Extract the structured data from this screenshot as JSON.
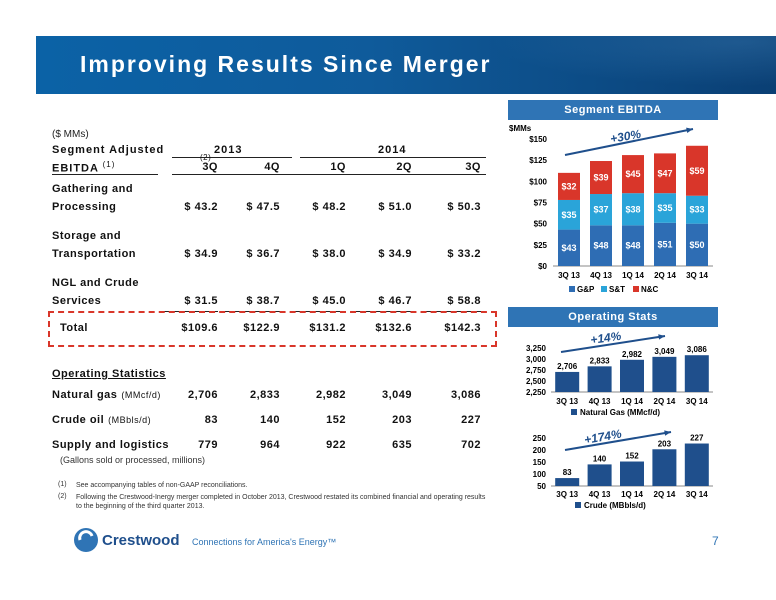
{
  "page": {
    "title": "Improving Results Since Merger",
    "page_number": "7",
    "tagline": "Connections for America's Energy™",
    "logo_text": "Crestwood",
    "units": "($ MMs)"
  },
  "table": {
    "row_header_line1": "Segment Adjusted",
    "row_header_line2": "EBITDA",
    "row_header_note": "(1)",
    "year_2013": "2013",
    "year_2014": "2014",
    "quarters": [
      "3Q",
      "4Q",
      "1Q",
      "2Q",
      "3Q"
    ],
    "q1_note": "(2)",
    "rows": [
      {
        "label1": "Gathering and",
        "label2": "Processing",
        "values": [
          "$ 43.2",
          "$ 47.5",
          "$ 48.2",
          "$ 51.0",
          "$ 50.3"
        ]
      },
      {
        "label1": "Storage and",
        "label2": "Transportation",
        "values": [
          "$ 34.9",
          "$ 36.7",
          "$ 38.0",
          "$ 34.9",
          "$ 33.2"
        ]
      },
      {
        "label1": "NGL and Crude",
        "label2": "Services",
        "values": [
          "$ 31.5",
          "$ 38.7",
          "$ 45.0",
          "$ 46.7",
          "$ 58.8"
        ]
      }
    ],
    "total": {
      "label": "Total",
      "values": [
        "$109.6",
        "$122.9",
        "$131.2",
        "$132.6",
        "$142.3"
      ]
    }
  },
  "ops": {
    "header": "Operating Statistics",
    "rows": [
      {
        "label": "Natural gas",
        "unit": "(MMcf/d)",
        "values": [
          "2,706",
          "2,833",
          "2,982",
          "3,049",
          "3,086"
        ]
      },
      {
        "label": "Crude oil",
        "unit": "(MBbls/d)",
        "values": [
          "83",
          "140",
          "152",
          "203",
          "227"
        ]
      },
      {
        "label": "Supply and logistics",
        "unit": "",
        "values": [
          "779",
          "964",
          "922",
          "635",
          "702"
        ]
      }
    ],
    "note": "(Gallons sold or processed, millions)"
  },
  "footnotes": [
    {
      "n": "(1)",
      "text": "See accompanying tables of non-GAAP reconciliations."
    },
    {
      "n": "(2)",
      "text": "Following the Crestwood-Inergy merger completed in October 2013, Crestwood restated its combined financial and operating results to the beginning of the third quarter 2013."
    }
  ],
  "colors": {
    "gp": "#2e6db4",
    "st": "#2aa4d9",
    "nc": "#d9362a",
    "ops_bar": "#1f4f8c",
    "panel": "#2f74b5"
  },
  "chart_data": [
    {
      "type": "bar",
      "stacked": true,
      "title": "Segment EBITDA",
      "ylabel": "$MMs",
      "categories": [
        "3Q 13",
        "4Q 13",
        "1Q 14",
        "2Q 14",
        "3Q 14"
      ],
      "series": [
        {
          "name": "G&P",
          "values": [
            43,
            48,
            48,
            51,
            50
          ],
          "labels": [
            "$43",
            "$48",
            "$48",
            "$51",
            "$50"
          ]
        },
        {
          "name": "S&T",
          "values": [
            35,
            37,
            38,
            35,
            33
          ],
          "labels": [
            "$35",
            "$37",
            "$38",
            "$35",
            "$33"
          ]
        },
        {
          "name": "N&C",
          "values": [
            32,
            39,
            45,
            47,
            59
          ],
          "labels": [
            "$32",
            "$39",
            "$45",
            "$47",
            "$59"
          ]
        }
      ],
      "ylim": [
        0,
        150
      ],
      "yticks": [
        "$0",
        "$25",
        "$50",
        "$75",
        "$100",
        "$125",
        "$150"
      ],
      "annotation": "+30%",
      "legend": "bottom"
    },
    {
      "type": "bar",
      "title": "Operating Stats",
      "categories": [
        "3Q 13",
        "4Q 13",
        "1Q 14",
        "2Q 14",
        "3Q 14"
      ],
      "series": [
        {
          "name": "Natural Gas (MMcf/d)",
          "values": [
            2706,
            2833,
            2982,
            3049,
            3086
          ],
          "labels": [
            "2,706",
            "2,833",
            "2,982",
            "3,049",
            "3,086"
          ]
        }
      ],
      "ylim": [
        2250,
        3250
      ],
      "yticks": [
        "2,250",
        "2,500",
        "2,750",
        "3,000",
        "3,250"
      ],
      "annotation": "+14%",
      "legend": "bottom"
    },
    {
      "type": "bar",
      "categories": [
        "3Q 13",
        "4Q 13",
        "1Q 14",
        "2Q 14",
        "3Q 14"
      ],
      "series": [
        {
          "name": "Crude (MBbls/d)",
          "values": [
            83,
            140,
            152,
            203,
            227
          ],
          "labels": [
            "83",
            "140",
            "152",
            "203",
            "227"
          ]
        }
      ],
      "ylim": [
        50,
        250
      ],
      "yticks": [
        "50",
        "100",
        "150",
        "200",
        "250"
      ],
      "annotation": "+174%",
      "legend": "bottom"
    }
  ]
}
